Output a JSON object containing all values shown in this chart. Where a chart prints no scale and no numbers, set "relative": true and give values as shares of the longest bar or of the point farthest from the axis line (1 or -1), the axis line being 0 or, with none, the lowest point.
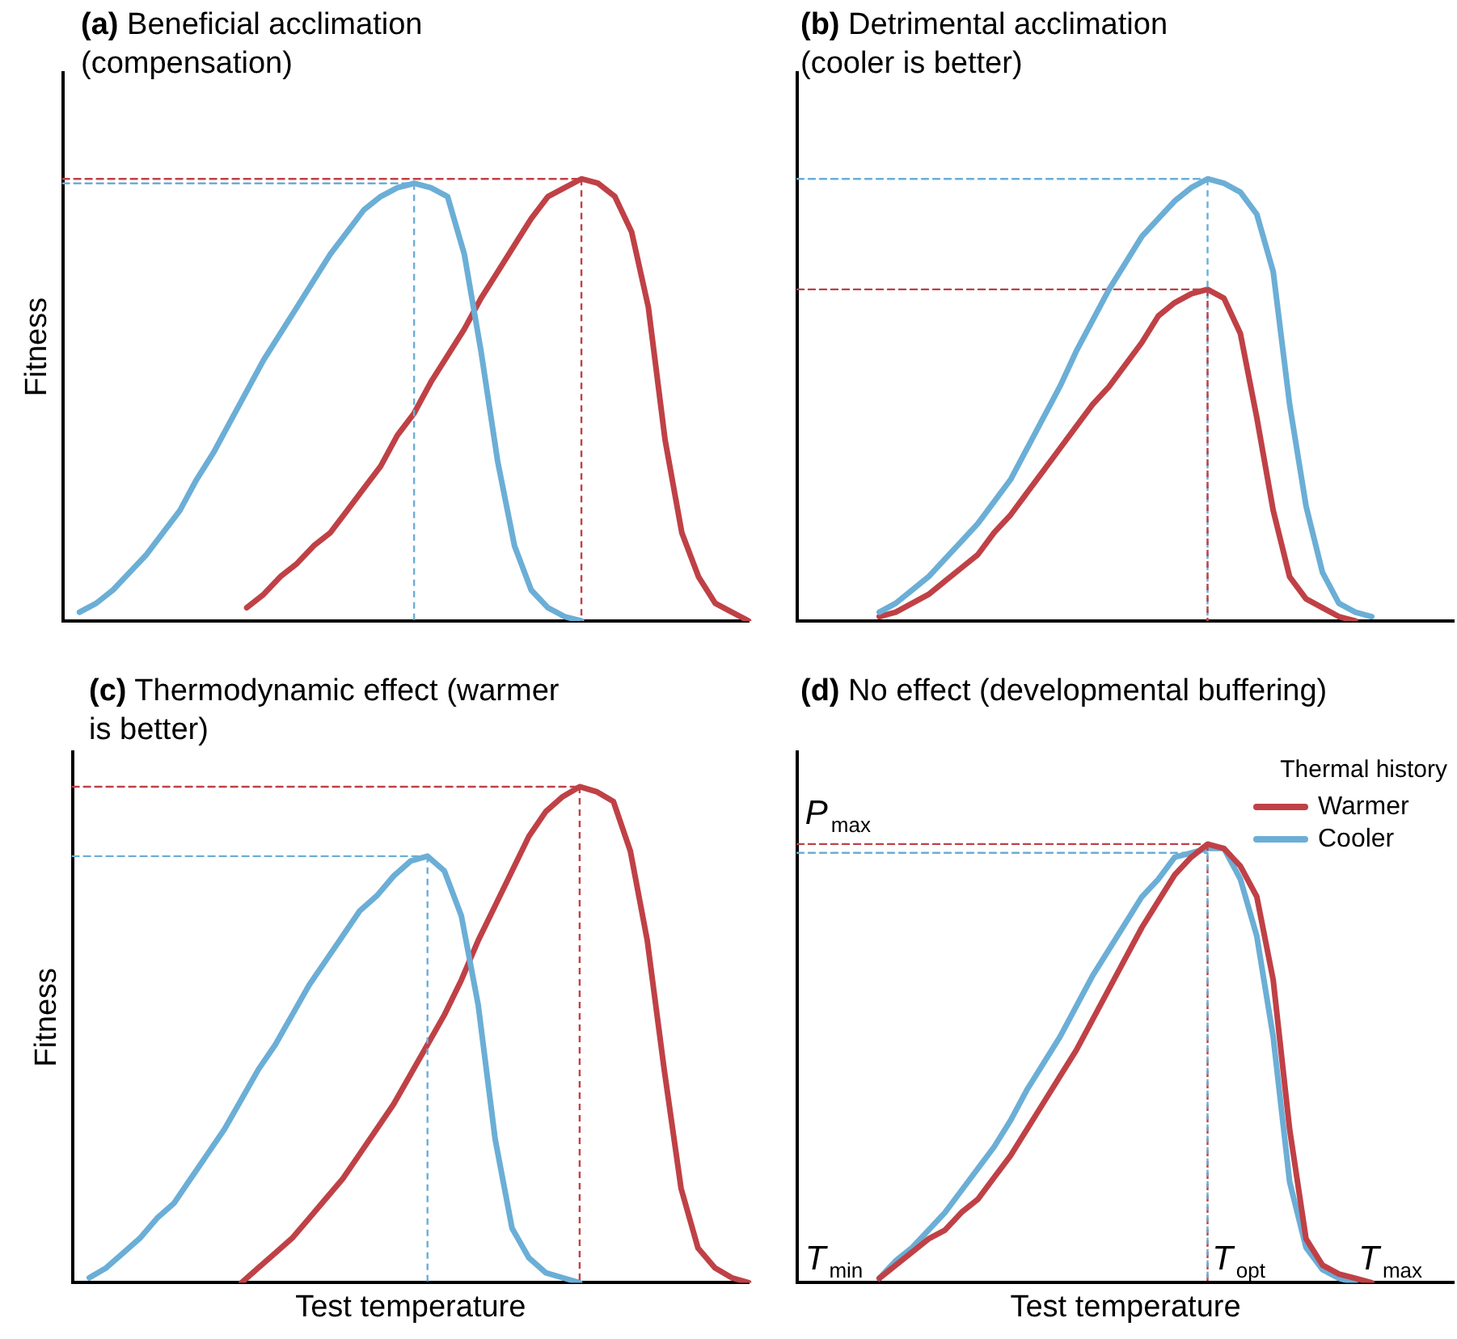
{
  "chart_data": [
    {
      "type": "line",
      "title": "(a) Beneficial acclimation (compensation)",
      "ylabel": "Fitness",
      "relative": true,
      "tick_labels": false,
      "marker": "none",
      "line_style": "solid",
      "categories": [
        null,
        null,
        null,
        null,
        null,
        null,
        null,
        null,
        null,
        null,
        null,
        null,
        null,
        null,
        null,
        null,
        null,
        null,
        null,
        null,
        null,
        null,
        null,
        null,
        null,
        null,
        null,
        null,
        null,
        null,
        null,
        null,
        null,
        null,
        null,
        null,
        null,
        null,
        null,
        null,
        null,
        null
      ],
      "series": [
        {
          "color": "#6baed6",
          "values": [
            null,
            0.02,
            0.04,
            0.07,
            0.11,
            0.15,
            0.2,
            0.25,
            0.32,
            0.38,
            0.45,
            0.52,
            0.59,
            0.65,
            0.71,
            0.77,
            0.83,
            0.88,
            0.93,
            0.96,
            0.98,
            0.99,
            0.98,
            0.96,
            0.83,
            0.61,
            0.36,
            0.17,
            0.07,
            0.03,
            0.01,
            0,
            null,
            null,
            null,
            null,
            null,
            null,
            null,
            null,
            null,
            null
          ]
        },
        {
          "color": "#bf4146",
          "values": [
            null,
            null,
            null,
            null,
            null,
            null,
            null,
            null,
            null,
            null,
            null,
            0.03,
            0.06,
            0.1,
            0.13,
            0.17,
            0.2,
            0.25,
            0.3,
            0.35,
            0.42,
            0.47,
            0.54,
            0.6,
            0.66,
            0.73,
            0.79,
            0.85,
            0.91,
            0.96,
            0.98,
            1,
            0.99,
            0.96,
            0.88,
            0.71,
            0.41,
            0.2,
            0.1,
            0.04,
            0.02,
            0
          ]
        },
        {
          "color": "#bf4146",
          "line_style": "dashed",
          "values": [
            1,
            1,
            1,
            1,
            1,
            1,
            1,
            1,
            1,
            1,
            1,
            1,
            1,
            1,
            1,
            1,
            1,
            1,
            1,
            1,
            1,
            1,
            1,
            1,
            1,
            1,
            1,
            1,
            1,
            1,
            1,
            1,
            null,
            null,
            null,
            null,
            null,
            null,
            null,
            null,
            null,
            null
          ]
        },
        {
          "color": "#6baed6",
          "line_style": "dashed",
          "values": [
            0.99,
            0.99,
            0.99,
            0.99,
            0.99,
            0.99,
            0.99,
            0.99,
            0.99,
            0.99,
            0.99,
            0.99,
            0.99,
            0.99,
            0.99,
            0.99,
            0.99,
            0.99,
            0.99,
            0.99,
            0.99,
            0.99,
            null,
            null,
            null,
            null,
            null,
            null,
            null,
            null,
            null,
            null,
            null,
            null,
            null,
            null,
            null,
            null,
            null,
            null,
            null,
            null
          ]
        }
      ]
    },
    {
      "type": "line",
      "title": "(b) Detrimental acclimation (cooler is better)",
      "relative": true,
      "tick_labels": false,
      "marker": "none",
      "line_style": "solid",
      "categories": [
        null,
        null,
        null,
        null,
        null,
        null,
        null,
        null,
        null,
        null,
        null,
        null,
        null,
        null,
        null,
        null,
        null,
        null,
        null,
        null,
        null,
        null,
        null,
        null,
        null,
        null,
        null,
        null,
        null,
        null,
        null,
        null,
        null,
        null,
        null,
        null,
        null,
        null,
        null,
        null,
        null
      ],
      "series": [
        {
          "color": "#6baed6",
          "values": [
            null,
            null,
            null,
            null,
            null,
            0.02,
            0.04,
            0.07,
            0.1,
            0.14,
            0.18,
            0.22,
            0.27,
            0.32,
            0.39,
            0.46,
            0.53,
            0.61,
            0.68,
            0.75,
            0.81,
            0.87,
            0.91,
            0.95,
            0.98,
            1,
            0.99,
            0.97,
            0.92,
            0.79,
            0.49,
            0.26,
            0.11,
            0.04,
            0.02,
            0.01,
            null,
            null,
            null,
            null,
            null
          ]
        },
        {
          "color": "#bf4146",
          "values": [
            null,
            null,
            null,
            null,
            null,
            0.01,
            0.02,
            0.04,
            0.06,
            0.09,
            0.12,
            0.15,
            0.2,
            0.24,
            0.29,
            0.34,
            0.39,
            0.44,
            0.49,
            0.53,
            0.58,
            0.63,
            0.69,
            0.72,
            0.74,
            0.75,
            0.73,
            0.65,
            0.46,
            0.25,
            0.1,
            0.05,
            0.03,
            0.01,
            0,
            null,
            null,
            null,
            null,
            null,
            null
          ]
        },
        {
          "color": "#6baed6",
          "line_style": "dashed",
          "values": [
            1,
            1,
            1,
            1,
            1,
            1,
            1,
            1,
            1,
            1,
            1,
            1,
            1,
            1,
            1,
            1,
            1,
            1,
            1,
            1,
            1,
            1,
            1,
            1,
            1,
            1,
            null,
            null,
            null,
            null,
            null,
            null,
            null,
            null,
            null,
            null,
            null,
            null,
            null,
            null,
            null
          ]
        },
        {
          "color": "#bf4146",
          "line_style": "dashed",
          "values": [
            0.75,
            0.75,
            0.75,
            0.75,
            0.75,
            0.75,
            0.75,
            0.75,
            0.75,
            0.75,
            0.75,
            0.75,
            0.75,
            0.75,
            0.75,
            0.75,
            0.75,
            0.75,
            0.75,
            0.75,
            0.75,
            0.75,
            0.75,
            0.75,
            0.75,
            0.75,
            null,
            null,
            null,
            null,
            null,
            null,
            null,
            null,
            null,
            null,
            null,
            null,
            null,
            null,
            null
          ]
        }
      ]
    },
    {
      "type": "line",
      "title": "(c) Thermodynamic effect (warmer is better)",
      "ylabel": "Fitness",
      "xlabel": "Test temperature",
      "relative": true,
      "tick_labels": false,
      "marker": "none",
      "line_style": "solid",
      "categories": [
        null,
        null,
        null,
        null,
        null,
        null,
        null,
        null,
        null,
        null,
        null,
        null,
        null,
        null,
        null,
        null,
        null,
        null,
        null,
        null,
        null,
        null,
        null,
        null,
        null,
        null,
        null,
        null,
        null,
        null,
        null,
        null,
        null,
        null,
        null,
        null,
        null,
        null,
        null,
        null,
        null
      ],
      "series": [
        {
          "color": "#6baed6",
          "values": [
            null,
            0.01,
            0.03,
            0.06,
            0.09,
            0.13,
            0.16,
            0.21,
            0.26,
            0.31,
            0.37,
            0.43,
            0.48,
            0.54,
            0.6,
            0.65,
            0.7,
            0.75,
            0.78,
            0.82,
            0.85,
            0.86,
            0.83,
            0.74,
            0.56,
            0.29,
            0.11,
            0.05,
            0.02,
            0.01,
            0,
            null,
            null,
            null,
            null,
            null,
            null,
            null,
            null,
            null,
            null
          ]
        },
        {
          "color": "#bf4146",
          "values": [
            null,
            null,
            null,
            null,
            null,
            null,
            null,
            null,
            null,
            null,
            0,
            0.03,
            0.06,
            0.09,
            0.13,
            0.17,
            0.21,
            0.26,
            0.31,
            0.36,
            0.42,
            0.48,
            0.54,
            0.61,
            0.69,
            0.76,
            0.83,
            0.9,
            0.95,
            0.98,
            1,
            0.99,
            0.97,
            0.87,
            0.69,
            0.43,
            0.19,
            0.07,
            0.03,
            0.01,
            0
          ]
        },
        {
          "color": "#bf4146",
          "line_style": "dashed",
          "values": [
            1,
            1,
            1,
            1,
            1,
            1,
            1,
            1,
            1,
            1,
            1,
            1,
            1,
            1,
            1,
            1,
            1,
            1,
            1,
            1,
            1,
            1,
            1,
            1,
            1,
            1,
            1,
            1,
            1,
            1,
            1,
            null,
            null,
            null,
            null,
            null,
            null,
            null,
            null,
            null,
            null
          ]
        },
        {
          "color": "#6baed6",
          "line_style": "dashed",
          "values": [
            0.86,
            0.86,
            0.86,
            0.86,
            0.86,
            0.86,
            0.86,
            0.86,
            0.86,
            0.86,
            0.86,
            0.86,
            0.86,
            0.86,
            0.86,
            0.86,
            0.86,
            0.86,
            0.86,
            0.86,
            0.86,
            0.86,
            null,
            null,
            null,
            null,
            null,
            null,
            null,
            null,
            null,
            null,
            null,
            null,
            null,
            null,
            null,
            null,
            null,
            null,
            null
          ]
        }
      ]
    },
    {
      "type": "line",
      "title": "(d) No effect (developmental buffering)",
      "xlabel": "Test temperature",
      "relative": true,
      "tick_labels": false,
      "marker": "none",
      "line_style": "solid",
      "legend": "top right",
      "legend_title": "Thermal history",
      "categories": [
        null,
        null,
        null,
        null,
        null,
        null,
        null,
        null,
        null,
        null,
        null,
        null,
        null,
        null,
        null,
        null,
        null,
        null,
        null,
        null,
        null,
        null,
        null,
        null,
        null,
        null,
        null,
        null,
        null,
        null,
        null,
        null,
        null,
        null,
        null,
        null,
        null,
        null,
        null,
        null,
        null
      ],
      "series": [
        {
          "name": "Warmer",
          "color": "#bf4146",
          "values": [
            null,
            null,
            null,
            null,
            null,
            0.01,
            0.04,
            0.07,
            0.1,
            0.12,
            0.16,
            0.19,
            0.24,
            0.29,
            0.35,
            0.41,
            0.47,
            0.53,
            0.6,
            0.67,
            0.74,
            0.81,
            0.87,
            0.93,
            0.97,
            1,
            0.99,
            0.95,
            0.88,
            0.69,
            0.35,
            0.1,
            0.04,
            0.02,
            0.01,
            0,
            null,
            null,
            null,
            null,
            null
          ]
        },
        {
          "name": "Cooler",
          "color": "#6baed6",
          "values": [
            null,
            null,
            null,
            null,
            null,
            0.01,
            0.05,
            0.08,
            0.12,
            0.16,
            0.21,
            0.26,
            0.31,
            0.37,
            0.44,
            0.5,
            0.56,
            0.63,
            0.7,
            0.76,
            0.82,
            0.88,
            0.92,
            0.97,
            0.98,
            0.99,
            0.99,
            0.92,
            0.79,
            0.56,
            0.23,
            0.08,
            0.03,
            0.01,
            0,
            null,
            null,
            null,
            null,
            null,
            null
          ]
        },
        {
          "color": "#bf4146",
          "line_style": "dashed",
          "values": [
            1,
            1,
            1,
            1,
            1,
            1,
            1,
            1,
            1,
            1,
            1,
            1,
            1,
            1,
            1,
            1,
            1,
            1,
            1,
            1,
            1,
            1,
            1,
            1,
            1,
            1,
            null,
            null,
            null,
            null,
            null,
            null,
            null,
            null,
            null,
            null,
            null,
            null,
            null,
            null,
            null
          ]
        },
        {
          "color": "#6baed6",
          "line_style": "dashed",
          "values": [
            0.98,
            0.98,
            0.98,
            0.98,
            0.98,
            0.98,
            0.98,
            0.98,
            0.98,
            0.98,
            0.98,
            0.98,
            0.98,
            0.98,
            0.98,
            0.98,
            0.98,
            0.98,
            0.98,
            0.98,
            0.98,
            0.98,
            0.98,
            0.98,
            0.98,
            0.98,
            null,
            null,
            null,
            null,
            null,
            null,
            null,
            null,
            null,
            null,
            null,
            null,
            null,
            null,
            null
          ]
        }
      ],
      "annotations": [
        "P$_{max}$",
        "T$_{min}$",
        "T$_{opt}$",
        "T$_{max}$"
      ]
    }
  ]
}
